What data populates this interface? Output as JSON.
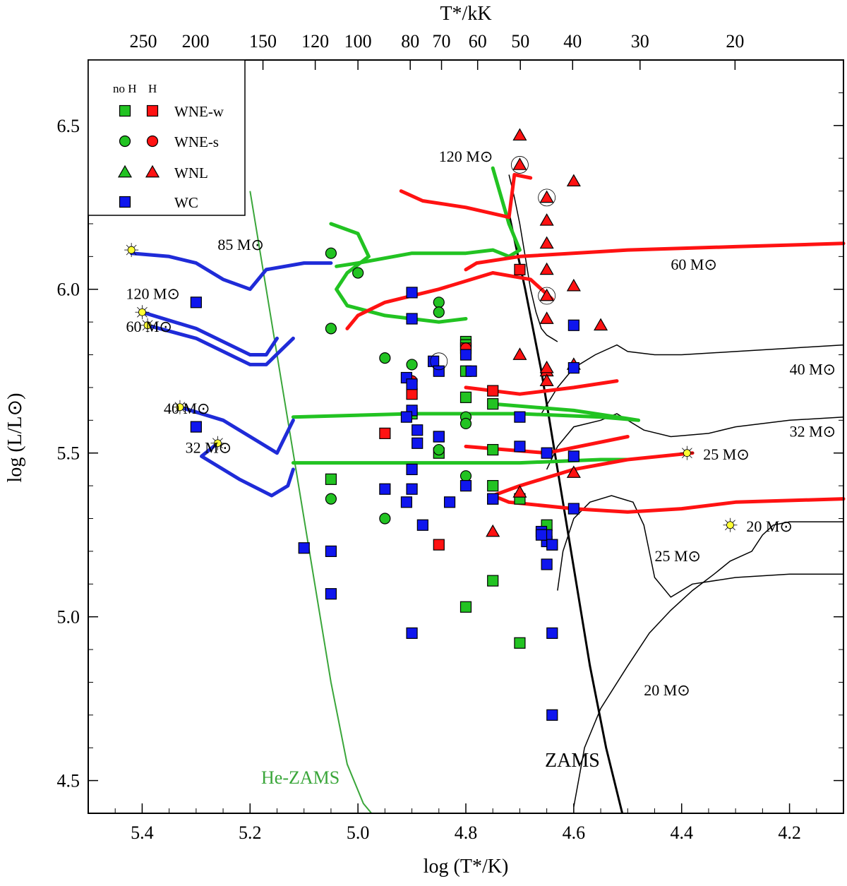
{
  "colors": {
    "green": "#22c322",
    "red": "#ff1212",
    "blue": "#0f16ee",
    "track_green": "#22c322",
    "track_red": "#ff1212",
    "track_blue": "#1f2bd8",
    "he_zams": "#3aa63a",
    "black": "#000000",
    "star_fill": "#ffff33"
  },
  "chart_data": {
    "type": "scatter",
    "title": "",
    "xlabel": "log (T*/K)",
    "ylabel": "log (L/L⊙)",
    "top_xlabel": "T*/kK",
    "xlim": [
      5.5,
      4.1
    ],
    "ylim": [
      4.4,
      6.7
    ],
    "x_ticks": [
      5.4,
      5.2,
      5.0,
      4.8,
      4.6,
      4.4,
      4.2
    ],
    "x_tick_labels": [
      "5.4",
      "5.2",
      "5.0",
      "4.8",
      "4.6",
      "4.4",
      "4.2"
    ],
    "y_ticks": [
      4.5,
      5.0,
      5.5,
      6.0,
      6.5
    ],
    "y_tick_labels": [
      "4.5",
      "5.0",
      "5.5",
      "6.0",
      "6.5"
    ],
    "top_ticks_kK": [
      250,
      200,
      150,
      120,
      100,
      80,
      70,
      60,
      50,
      40,
      30,
      20
    ],
    "top_tick_labels": [
      "250",
      "200",
      "150",
      "120",
      "100",
      "80",
      "70",
      "60",
      "50",
      "40",
      "30",
      "20"
    ],
    "legend": {
      "placement": "top-left",
      "header_noH": "no H",
      "header_H": "H",
      "entries": [
        {
          "label": "WNE-w",
          "marker": "square",
          "noH": true,
          "H": true
        },
        {
          "label": "WNE-s",
          "marker": "circle",
          "noH": true,
          "H": true
        },
        {
          "label": "WNL",
          "marker": "triangle",
          "noH": true,
          "H": true
        },
        {
          "label": "WC",
          "marker": "square-blue",
          "noH": true,
          "H": false
        }
      ]
    },
    "series": [
      {
        "name": "WNE-w no H",
        "marker": "square",
        "color": "green",
        "x": [
          4.8,
          4.8,
          4.9,
          4.75,
          4.8,
          4.85,
          4.75,
          4.8,
          4.7,
          4.65,
          4.75,
          4.75,
          4.8,
          4.7,
          5.05
        ],
        "y": [
          5.84,
          5.75,
          5.62,
          5.65,
          5.67,
          5.5,
          5.51,
          5.83,
          5.36,
          5.28,
          5.4,
          5.11,
          5.03,
          4.92,
          5.42
        ]
      },
      {
        "name": "WNE-w H",
        "marker": "square",
        "color": "red",
        "x": [
          4.95,
          4.9,
          4.8,
          4.75,
          4.85,
          4.7
        ],
        "y": [
          5.56,
          5.68,
          5.82,
          5.69,
          5.22,
          6.06
        ]
      },
      {
        "name": "WNE-s no H",
        "marker": "circle",
        "color": "green",
        "x": [
          5.05,
          5.0,
          5.05,
          4.95,
          4.9,
          4.85,
          4.85,
          4.8,
          4.8,
          4.85,
          5.05,
          4.95,
          4.8
        ],
        "y": [
          6.11,
          6.05,
          5.88,
          5.79,
          5.77,
          5.96,
          5.93,
          5.61,
          5.59,
          5.51,
          5.36,
          5.3,
          5.43
        ]
      },
      {
        "name": "WNE-s H",
        "marker": "circle",
        "color": "red",
        "x": [
          4.9,
          4.8
        ],
        "y": [
          5.72,
          5.82
        ]
      },
      {
        "name": "WNL H",
        "marker": "triangle",
        "color": "red",
        "x": [
          4.7,
          4.7,
          4.65,
          4.65,
          4.65,
          4.65,
          4.65,
          4.65,
          4.65,
          4.6,
          4.6,
          4.55,
          4.7,
          4.6,
          4.65,
          4.65,
          4.75,
          4.6,
          4.7
        ],
        "y": [
          6.47,
          6.38,
          6.28,
          6.21,
          6.14,
          6.06,
          5.98,
          5.91,
          5.75,
          6.33,
          6.01,
          5.89,
          5.8,
          5.77,
          5.72,
          5.76,
          5.26,
          5.44,
          5.38
        ]
      },
      {
        "name": "WC",
        "marker": "square",
        "color": "blue",
        "x": [
          5.3,
          5.3,
          5.1,
          5.05,
          5.05,
          4.95,
          4.9,
          4.9,
          4.91,
          4.9,
          4.9,
          4.91,
          4.89,
          4.9,
          4.9,
          4.88,
          4.86,
          4.85,
          4.85,
          4.8,
          4.8,
          4.79,
          4.75,
          4.75,
          4.9,
          4.7,
          4.7,
          4.65,
          4.6,
          4.6,
          4.6,
          4.66,
          4.65,
          4.65,
          4.64,
          4.66,
          4.64,
          4.65,
          4.64,
          4.64,
          4.6,
          4.89,
          4.91,
          4.85,
          4.83
        ],
        "y": [
          5.96,
          5.58,
          5.21,
          5.2,
          5.07,
          5.39,
          5.99,
          5.91,
          5.73,
          5.71,
          5.63,
          5.61,
          5.57,
          5.45,
          5.39,
          5.28,
          5.78,
          5.75,
          5.55,
          5.8,
          5.4,
          5.75,
          5.36,
          5.36,
          4.95,
          5.61,
          5.52,
          5.5,
          5.49,
          5.89,
          5.76,
          5.26,
          5.23,
          5.25,
          5.22,
          5.25,
          5.22,
          5.16,
          4.95,
          4.7,
          5.33,
          5.53,
          5.35,
          5.55,
          5.35
        ]
      }
    ],
    "circled_points": [
      {
        "x": 4.7,
        "y": 6.38
      },
      {
        "x": 4.65,
        "y": 6.28
      },
      {
        "x": 4.65,
        "y": 5.98
      },
      {
        "x": 4.85,
        "y": 5.78
      }
    ],
    "he_zams": {
      "label": "He-ZAMS",
      "x": [
        5.2,
        5.17,
        5.14,
        5.11,
        5.08,
        5.05,
        5.02,
        4.99,
        4.975
      ],
      "y": [
        6.3,
        6.0,
        5.7,
        5.4,
        5.1,
        4.8,
        4.55,
        4.43,
        4.4
      ]
    },
    "zams": {
      "label": "ZAMS",
      "x": [
        4.72,
        4.69,
        4.66,
        4.63,
        4.6,
        4.57,
        4.54,
        4.51
      ],
      "y": [
        6.23,
        6.0,
        5.75,
        5.45,
        5.15,
        4.85,
        4.6,
        4.4
      ]
    },
    "tracks_black": [
      {
        "name": "20 M⊙ track",
        "x": [
          4.6,
          4.58,
          4.55,
          4.5,
          4.46,
          4.42,
          4.38,
          4.34,
          4.31,
          4.27,
          4.25,
          4.23,
          4.2,
          4.1
        ],
        "y": [
          4.42,
          4.6,
          4.72,
          4.85,
          4.95,
          5.02,
          5.08,
          5.13,
          5.17,
          5.2,
          5.25,
          5.28,
          5.29,
          5.29
        ]
      },
      {
        "name": "25 M⊙ track",
        "x": [
          4.63,
          4.62,
          4.6,
          4.57,
          4.53,
          4.49,
          4.47,
          4.45,
          4.42,
          4.38,
          4.3,
          4.2,
          4.1
        ],
        "y": [
          5.08,
          5.2,
          5.3,
          5.35,
          5.37,
          5.35,
          5.28,
          5.12,
          5.06,
          5.1,
          5.12,
          5.13,
          5.13
        ]
      },
      {
        "name": "32 M⊙ track",
        "x": [
          4.65,
          4.63,
          4.6,
          4.55,
          4.52,
          4.47,
          4.42,
          4.35,
          4.3,
          4.2,
          4.1
        ],
        "y": [
          5.45,
          5.52,
          5.58,
          5.6,
          5.62,
          5.57,
          5.55,
          5.56,
          5.58,
          5.6,
          5.61
        ]
      },
      {
        "name": "40 M⊙ track",
        "x": [
          4.66,
          4.63,
          4.6,
          4.56,
          4.52,
          4.5,
          4.45,
          4.4,
          4.3,
          4.2,
          4.1
        ],
        "y": [
          5.62,
          5.7,
          5.76,
          5.8,
          5.83,
          5.81,
          5.8,
          5.8,
          5.81,
          5.82,
          5.83
        ]
      },
      {
        "name": "120 M⊙ track",
        "x": [
          4.72,
          4.71,
          4.7,
          4.69,
          4.68,
          4.67,
          4.66,
          4.65,
          4.64,
          4.63
        ],
        "y": [
          6.35,
          6.28,
          6.2,
          6.1,
          6.0,
          5.93,
          5.88,
          5.86,
          5.85,
          5.84
        ]
      }
    ],
    "tracks_red": [
      {
        "name": "60 M⊙",
        "x": [
          4.1,
          4.3,
          4.5,
          4.7,
          4.78,
          4.8
        ],
        "y": [
          6.14,
          6.13,
          6.12,
          6.1,
          6.08,
          6.06
        ]
      },
      {
        "name": "120 M⊙ red",
        "x": [
          4.92,
          4.88,
          4.8,
          4.72,
          4.71,
          4.68
        ],
        "y": [
          6.3,
          6.27,
          6.25,
          6.22,
          6.35,
          6.34
        ]
      },
      {
        "name": "60 M⊙ red loop",
        "x": [
          4.75,
          4.68,
          4.66,
          4.64
        ],
        "y": [
          6.05,
          6.03,
          6.0,
          5.97
        ]
      },
      {
        "name": "85 M⊙ red",
        "x": [
          4.75,
          4.85,
          4.95,
          5.0,
          5.02
        ],
        "y": [
          6.05,
          6.0,
          5.96,
          5.92,
          5.88
        ]
      },
      {
        "name": "40 M⊙ red",
        "x": [
          4.8,
          4.7,
          4.6,
          4.52
        ],
        "y": [
          5.7,
          5.68,
          5.7,
          5.72
        ]
      },
      {
        "name": "32 M⊙ red",
        "x": [
          4.8,
          4.65,
          4.5
        ],
        "y": [
          5.52,
          5.5,
          5.55
        ]
      },
      {
        "name": "25 M⊙ red",
        "x": [
          4.38,
          4.5,
          4.6,
          4.7,
          4.75,
          4.72,
          4.6,
          4.5,
          4.4,
          4.3,
          4.1
        ],
        "y": [
          5.5,
          5.48,
          5.45,
          5.4,
          5.37,
          5.35,
          5.33,
          5.32,
          5.33,
          5.35,
          5.36
        ]
      }
    ],
    "tracks_green": [
      {
        "name": "120 M⊙ green",
        "x": [
          4.75,
          4.72,
          4.7,
          4.72,
          4.75,
          4.8,
          4.9,
          5.0,
          5.04
        ],
        "y": [
          6.37,
          6.2,
          6.12,
          6.1,
          6.12,
          6.11,
          6.11,
          6.08,
          6.07
        ]
      },
      {
        "name": "85 M⊙ green",
        "x": [
          5.05,
          5.0,
          4.98,
          5.02,
          5.04,
          5.02,
          4.95,
          4.9,
          4.85,
          4.8
        ],
        "y": [
          6.2,
          6.17,
          6.1,
          6.05,
          6.0,
          5.95,
          5.92,
          5.91,
          5.9,
          5.91
        ]
      },
      {
        "name": "40 M⊙ green",
        "x": [
          5.12,
          4.9,
          4.7,
          4.55,
          4.48,
          4.6,
          4.75
        ],
        "y": [
          5.61,
          5.62,
          5.62,
          5.61,
          5.6,
          5.63,
          5.65
        ]
      },
      {
        "name": "32 M⊙ green",
        "x": [
          5.12,
          4.9,
          4.7,
          4.55,
          4.5
        ],
        "y": [
          5.47,
          5.47,
          5.47,
          5.48,
          5.48
        ]
      }
    ],
    "tracks_blue": [
      {
        "name": "85 M⊙",
        "x": [
          5.42,
          5.35,
          5.3,
          5.25,
          5.2,
          5.17,
          5.1,
          5.05
        ],
        "y": [
          6.11,
          6.1,
          6.08,
          6.03,
          6.0,
          6.06,
          6.08,
          6.08
        ]
      },
      {
        "name": "120 M⊙",
        "x": [
          5.4,
          5.3,
          5.2,
          5.17,
          5.15
        ],
        "y": [
          5.93,
          5.88,
          5.8,
          5.8,
          5.85
        ]
      },
      {
        "name": "60 M⊙",
        "x": [
          5.39,
          5.3,
          5.2,
          5.17,
          5.12
        ],
        "y": [
          5.89,
          5.85,
          5.77,
          5.77,
          5.85
        ]
      },
      {
        "name": "40 M⊙",
        "x": [
          5.33,
          5.25,
          5.18,
          5.15,
          5.12
        ],
        "y": [
          5.64,
          5.6,
          5.53,
          5.5,
          5.6
        ]
      },
      {
        "name": "32 M⊙",
        "x": [
          5.26,
          5.29,
          5.22,
          5.16,
          5.13,
          5.12
        ],
        "y": [
          5.53,
          5.49,
          5.42,
          5.37,
          5.4,
          5.45
        ]
      }
    ],
    "annotations": [
      {
        "text": "85 M⊙",
        "x": 5.26,
        "y": 6.12
      },
      {
        "text": "120 M⊙",
        "x": 5.43,
        "y": 5.97
      },
      {
        "text": "60 M⊙",
        "x": 5.43,
        "y": 5.87
      },
      {
        "text": "40 M⊙",
        "x": 5.36,
        "y": 5.62
      },
      {
        "text": "32 M⊙",
        "x": 5.32,
        "y": 5.5
      },
      {
        "text": "120 M⊙",
        "x": 4.85,
        "y": 6.39
      },
      {
        "text": "60 M⊙",
        "x": 4.42,
        "y": 6.06
      },
      {
        "text": "40 M⊙",
        "x": 4.2,
        "y": 5.74
      },
      {
        "text": "32 M⊙",
        "x": 4.2,
        "y": 5.55
      },
      {
        "text": "25 M⊙",
        "x": 4.36,
        "y": 5.48
      },
      {
        "text": "20 M⊙",
        "x": 4.28,
        "y": 5.26
      },
      {
        "text": "25 M⊙",
        "x": 4.45,
        "y": 5.17
      },
      {
        "text": "20 M⊙",
        "x": 4.47,
        "y": 4.76
      }
    ],
    "initial_star_markers": [
      {
        "x": 5.42,
        "y": 6.12
      },
      {
        "x": 5.4,
        "y": 5.93
      },
      {
        "x": 5.39,
        "y": 5.89
      },
      {
        "x": 5.33,
        "y": 5.64
      },
      {
        "x": 5.26,
        "y": 5.53
      },
      {
        "x": 4.39,
        "y": 5.5
      },
      {
        "x": 4.31,
        "y": 5.28
      }
    ]
  }
}
